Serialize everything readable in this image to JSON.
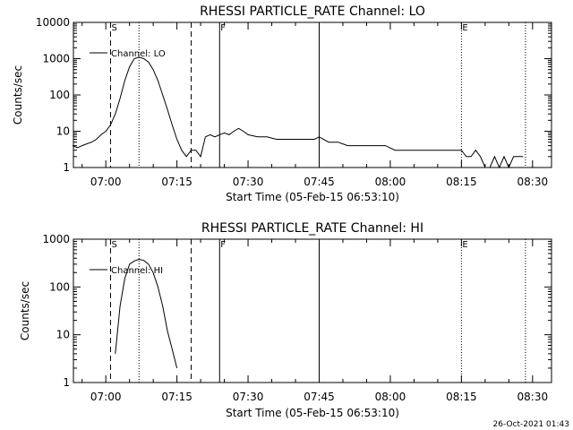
{
  "footer": {
    "timestamp": "26-Oct-2021 01:43"
  },
  "chart_data": [
    {
      "type": "line",
      "title": "RHESSI PARTICLE_RATE Channel: LO",
      "xlabel": "Start Time (05-Feb-15 06:53:10)",
      "ylabel": "Counts/sec",
      "y_scale": "log",
      "ylim": [
        1,
        10000
      ],
      "y_ticks": [
        "1",
        "10",
        "100",
        "1000",
        "10000"
      ],
      "x_tick_labels": [
        "07:00",
        "07:15",
        "07:30",
        "07:45",
        "08:00",
        "08:15",
        "08:30"
      ],
      "xlim": [
        "06:53:10",
        "08:34:00"
      ],
      "legend": "top-left",
      "series": [
        {
          "name": "Channel: LO",
          "x": [
            "06:53",
            "06:54",
            "06:55",
            "06:56",
            "06:57",
            "06:58",
            "06:59",
            "07:00",
            "07:01",
            "07:02",
            "07:03",
            "07:04",
            "07:05",
            "07:06",
            "07:07",
            "07:08",
            "07:09",
            "07:10",
            "07:11",
            "07:12",
            "07:13",
            "07:14",
            "07:15",
            "07:16",
            "07:17",
            "07:18",
            "07:19",
            "07:20",
            "07:21",
            "07:22",
            "07:23",
            "07:24",
            "07:25",
            "07:26",
            "07:27",
            "07:28",
            "07:29",
            "07:30",
            "07:32",
            "07:34",
            "07:36",
            "07:38",
            "07:40",
            "07:42",
            "07:44",
            "07:45",
            "07:47",
            "07:49",
            "07:51",
            "07:53",
            "07:55",
            "07:57",
            "07:59",
            "08:01",
            "08:03",
            "08:05",
            "08:07",
            "08:09",
            "08:11",
            "08:13",
            "08:15",
            "08:16",
            "08:17",
            "08:18",
            "08:19",
            "08:20",
            "08:21",
            "08:22",
            "08:23",
            "08:24",
            "08:25",
            "08:26",
            "08:27",
            "08:28"
          ],
          "y": [
            4,
            3.5,
            4,
            4.5,
            5,
            6,
            8,
            10,
            15,
            30,
            80,
            250,
            600,
            1000,
            1100,
            1000,
            800,
            500,
            250,
            100,
            40,
            15,
            6,
            3,
            2,
            3,
            3,
            2,
            7,
            8,
            7,
            8,
            9,
            8,
            10,
            12,
            10,
            8,
            7,
            7,
            6,
            6,
            6,
            6,
            6,
            7,
            5,
            5,
            4,
            4,
            4,
            4,
            4,
            3,
            3,
            3,
            3,
            3,
            3,
            3,
            3,
            2,
            2,
            3,
            2,
            1,
            1,
            2,
            1,
            2,
            1,
            2,
            2,
            2
          ]
        }
      ],
      "vertical_markers": [
        {
          "label": "",
          "time": "06:53:10",
          "style": "dotted"
        },
        {
          "label": "S",
          "time": "07:01:00",
          "style": "dashed"
        },
        {
          "label": "",
          "time": "07:07:00",
          "style": "dotted"
        },
        {
          "label": "",
          "time": "07:18:00",
          "style": "dashed"
        },
        {
          "label": "F",
          "time": "07:24:00",
          "style": "solid"
        },
        {
          "label": "",
          "time": "07:45:00",
          "style": "solid"
        },
        {
          "label": "E",
          "time": "08:15:00",
          "style": "dotted"
        },
        {
          "label": "",
          "time": "08:28:30",
          "style": "dotted"
        }
      ]
    },
    {
      "type": "line",
      "title": "RHESSI PARTICLE_RATE Channel: HI",
      "xlabel": "Start Time (05-Feb-15 06:53:10)",
      "ylabel": "Counts/sec",
      "y_scale": "log",
      "ylim": [
        1,
        1000
      ],
      "y_ticks": [
        "1",
        "10",
        "100",
        "1000"
      ],
      "x_tick_labels": [
        "07:00",
        "07:15",
        "07:30",
        "07:45",
        "08:00",
        "08:15",
        "08:30"
      ],
      "xlim": [
        "06:53:10",
        "08:34:00"
      ],
      "legend": "top-left",
      "series": [
        {
          "name": "Channel: HI",
          "x": [
            "07:02",
            "07:03",
            "07:04",
            "07:05",
            "07:06",
            "07:07",
            "07:08",
            "07:09",
            "07:10",
            "07:11",
            "07:12",
            "07:13",
            "07:14",
            "07:15"
          ],
          "y": [
            4,
            40,
            150,
            300,
            350,
            380,
            360,
            300,
            200,
            100,
            40,
            12,
            5,
            2
          ]
        }
      ],
      "vertical_markers": [
        {
          "label": "",
          "time": "06:53:10",
          "style": "dotted"
        },
        {
          "label": "S",
          "time": "07:01:00",
          "style": "dashed"
        },
        {
          "label": "",
          "time": "07:07:00",
          "style": "dotted"
        },
        {
          "label": "",
          "time": "07:18:00",
          "style": "dashed"
        },
        {
          "label": "F",
          "time": "07:24:00",
          "style": "solid"
        },
        {
          "label": "",
          "time": "07:45:00",
          "style": "solid"
        },
        {
          "label": "E",
          "time": "08:15:00",
          "style": "dotted"
        },
        {
          "label": "",
          "time": "08:28:30",
          "style": "dotted"
        }
      ]
    }
  ]
}
